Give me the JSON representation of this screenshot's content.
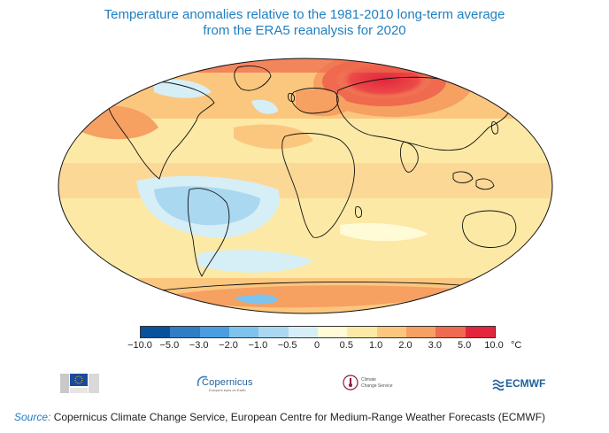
{
  "title": {
    "line1": "Temperature anomalies relative to the 1981-2010 long-term average",
    "line2": "from the ERA5 reanalysis for 2020"
  },
  "colorbar": {
    "tick_labels": [
      "−10.0",
      "−5.0",
      "−3.0",
      "−2.0",
      "−1.0",
      "−0.5",
      "0",
      "0.5",
      "1.0",
      "2.0",
      "3.0",
      "5.0",
      "10.0"
    ],
    "unit": "°C",
    "colors": [
      "#08519c",
      "#2f7dc4",
      "#4a9ee0",
      "#7ec3ee",
      "#a9d8f0",
      "#d6eef6",
      "#fffbd6",
      "#fde9a6",
      "#fbc77f",
      "#f6a062",
      "#ef6a4f",
      "#e3263c"
    ]
  },
  "logos": {
    "copernicus_text": "Copernicus",
    "copernicus_sub": "Europe's eyes on Earth",
    "climate_line1": "Climate",
    "climate_line2": "Change Service",
    "ecmwf_text": "ECMWF"
  },
  "source": {
    "label": "Source:",
    "text": " Copernicus Climate Change Service, European Centre for Medium-Range Weather Forecasts (ECMWF)"
  }
}
